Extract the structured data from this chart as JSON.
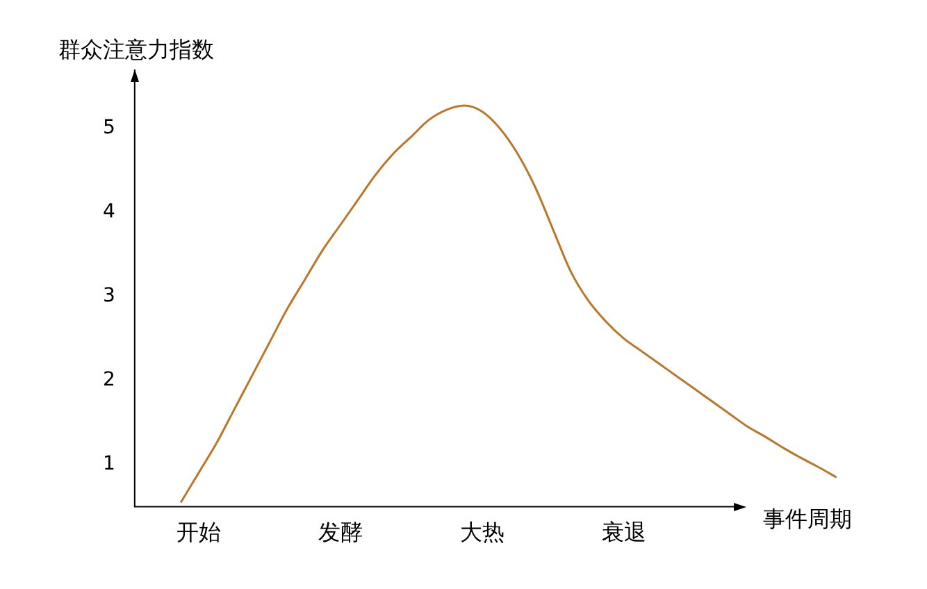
{
  "chart_data": {
    "type": "line",
    "xlabel": "事件周期",
    "ylabel": "群众注意力指数",
    "categories": [
      null,
      "开始",
      null,
      null,
      null,
      null,
      null,
      null,
      null,
      "发酵",
      null,
      null,
      null,
      null,
      null,
      null,
      null,
      "大热",
      null,
      null,
      null,
      null,
      null,
      null,
      null,
      "衰退",
      null,
      null,
      null,
      null,
      null,
      null,
      null,
      null,
      null,
      null,
      null,
      null
    ],
    "series": [
      {
        "color": "#b9772a",
        "values": [
          0.55,
          0.9,
          1.25,
          1.65,
          2.05,
          2.45,
          2.85,
          3.2,
          3.55,
          3.85,
          4.15,
          4.45,
          4.7,
          4.9,
          5.1,
          5.22,
          5.27,
          5.2,
          5.0,
          4.7,
          4.3,
          3.8,
          3.3,
          2.95,
          2.7,
          2.5,
          2.35,
          2.2,
          2.05,
          1.9,
          1.75,
          1.6,
          1.45,
          1.33,
          1.2,
          1.08,
          0.97,
          0.85
        ]
      }
    ],
    "ylim": [
      0.5,
      5.7
    ],
    "yticks": [
      1,
      2,
      3,
      4,
      5
    ],
    "grid": false,
    "legend": false,
    "marker": "none",
    "line_style": "solid"
  }
}
